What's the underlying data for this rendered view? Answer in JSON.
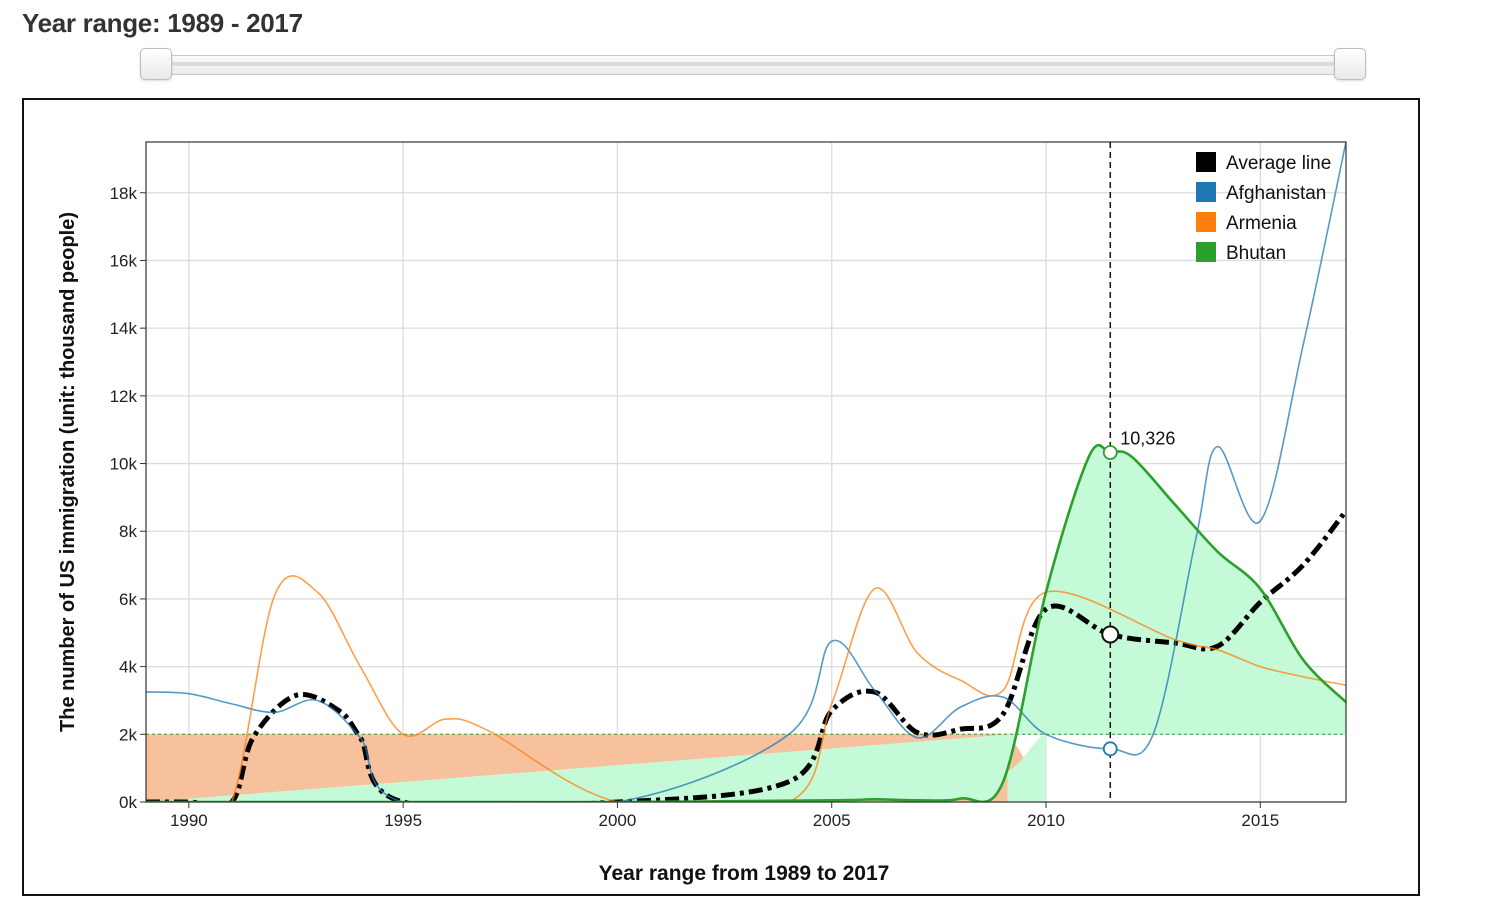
{
  "header": {
    "title": "Year range: 1989 - 2017"
  },
  "slider": {
    "min": 1989,
    "max": 2017,
    "low": 1989,
    "high": 2017
  },
  "chart_data": {
    "type": "line",
    "xlabel": "Year range from 1989 to 2017",
    "ylabel": "The number of US immigration (unit: thousand people)",
    "xlim": [
      1989,
      2017
    ],
    "ylim": [
      0,
      19500
    ],
    "x_ticks": [
      1990,
      1995,
      2000,
      2005,
      2010,
      2015
    ],
    "y_ticks": [
      0,
      2000,
      4000,
      6000,
      8000,
      10000,
      12000,
      14000,
      16000,
      18000
    ],
    "y_tick_labels": [
      "0k",
      "2k",
      "4k",
      "6k",
      "8k",
      "10k",
      "12k",
      "14k",
      "16k",
      "18k"
    ],
    "grid": true,
    "legend_position": "top-right",
    "baseline": 2000,
    "series": [
      {
        "name": "Average line",
        "color": "#000000",
        "points": [
          [
            1989,
            0
          ],
          [
            1990,
            0
          ],
          [
            1991,
            0
          ],
          [
            1991.5,
            1900
          ],
          [
            1992.5,
            3150
          ],
          [
            1993.5,
            2700
          ],
          [
            1994,
            1900
          ],
          [
            1995,
            0
          ],
          [
            2000,
            0
          ],
          [
            2004,
            600
          ],
          [
            2005,
            2700
          ],
          [
            2006,
            3250
          ],
          [
            2007,
            2050
          ],
          [
            2008,
            2150
          ],
          [
            2009,
            2600
          ],
          [
            2010,
            5700
          ],
          [
            2011.5,
            4950
          ],
          [
            2013,
            4700
          ],
          [
            2014,
            4600
          ],
          [
            2015,
            5900
          ],
          [
            2016,
            7000
          ],
          [
            2017,
            8600
          ]
        ]
      },
      {
        "name": "Afghanistan",
        "color": "#1f77b4",
        "points": [
          [
            1989,
            3250
          ],
          [
            1990,
            3200
          ],
          [
            1991,
            2900
          ],
          [
            1992,
            2650
          ],
          [
            1993,
            3000
          ],
          [
            1994,
            1900
          ],
          [
            1995,
            0
          ],
          [
            2000,
            0
          ],
          [
            2004,
            2000
          ],
          [
            2005,
            4750
          ],
          [
            2006,
            3300
          ],
          [
            2007,
            1900
          ],
          [
            2008,
            2800
          ],
          [
            2009,
            3100
          ],
          [
            2010,
            2000
          ],
          [
            2011.5,
            1571
          ],
          [
            2012.5,
            2000
          ],
          [
            2013.5,
            7800
          ],
          [
            2014,
            10500
          ],
          [
            2015,
            8300
          ],
          [
            2016,
            13500
          ],
          [
            2017,
            19500
          ]
        ]
      },
      {
        "name": "Armenia",
        "color": "#ff7f0e",
        "points": [
          [
            1989,
            0
          ],
          [
            1990,
            -100
          ],
          [
            1991,
            0
          ],
          [
            1992,
            6100
          ],
          [
            1993,
            6200
          ],
          [
            1994,
            4000
          ],
          [
            1995,
            2000
          ],
          [
            1996,
            2450
          ],
          [
            1997,
            2100
          ],
          [
            2000,
            0
          ],
          [
            2004,
            0
          ],
          [
            2005,
            2900
          ],
          [
            2006,
            6300
          ],
          [
            2007,
            4400
          ],
          [
            2008,
            3600
          ],
          [
            2009,
            3300
          ],
          [
            2010,
            6200
          ],
          [
            2013,
            4800
          ],
          [
            2014,
            4500
          ],
          [
            2015,
            4000
          ],
          [
            2016,
            3700
          ],
          [
            2017,
            3450
          ]
        ]
      },
      {
        "name": "Bhutan",
        "color": "#2ca02c",
        "fill": "#c5fad8",
        "points": [
          [
            1989,
            0
          ],
          [
            1995,
            0
          ],
          [
            2000,
            0
          ],
          [
            2005,
            50
          ],
          [
            2006,
            80
          ],
          [
            2007,
            50
          ],
          [
            2008,
            100
          ],
          [
            2009,
            600
          ],
          [
            2010,
            6200
          ],
          [
            2011,
            10200
          ],
          [
            2011.5,
            10326
          ],
          [
            2012,
            10200
          ],
          [
            2013,
            8800
          ],
          [
            2014,
            7400
          ],
          [
            2015,
            6300
          ],
          [
            2016,
            4200
          ],
          [
            2017,
            2950
          ]
        ]
      }
    ],
    "hover": {
      "year": 2011.5,
      "values": [
        10326,
        4949,
        1571
      ]
    },
    "annotations": [
      {
        "x": 2011.5,
        "y": 10326,
        "text": "10,326"
      }
    ]
  }
}
